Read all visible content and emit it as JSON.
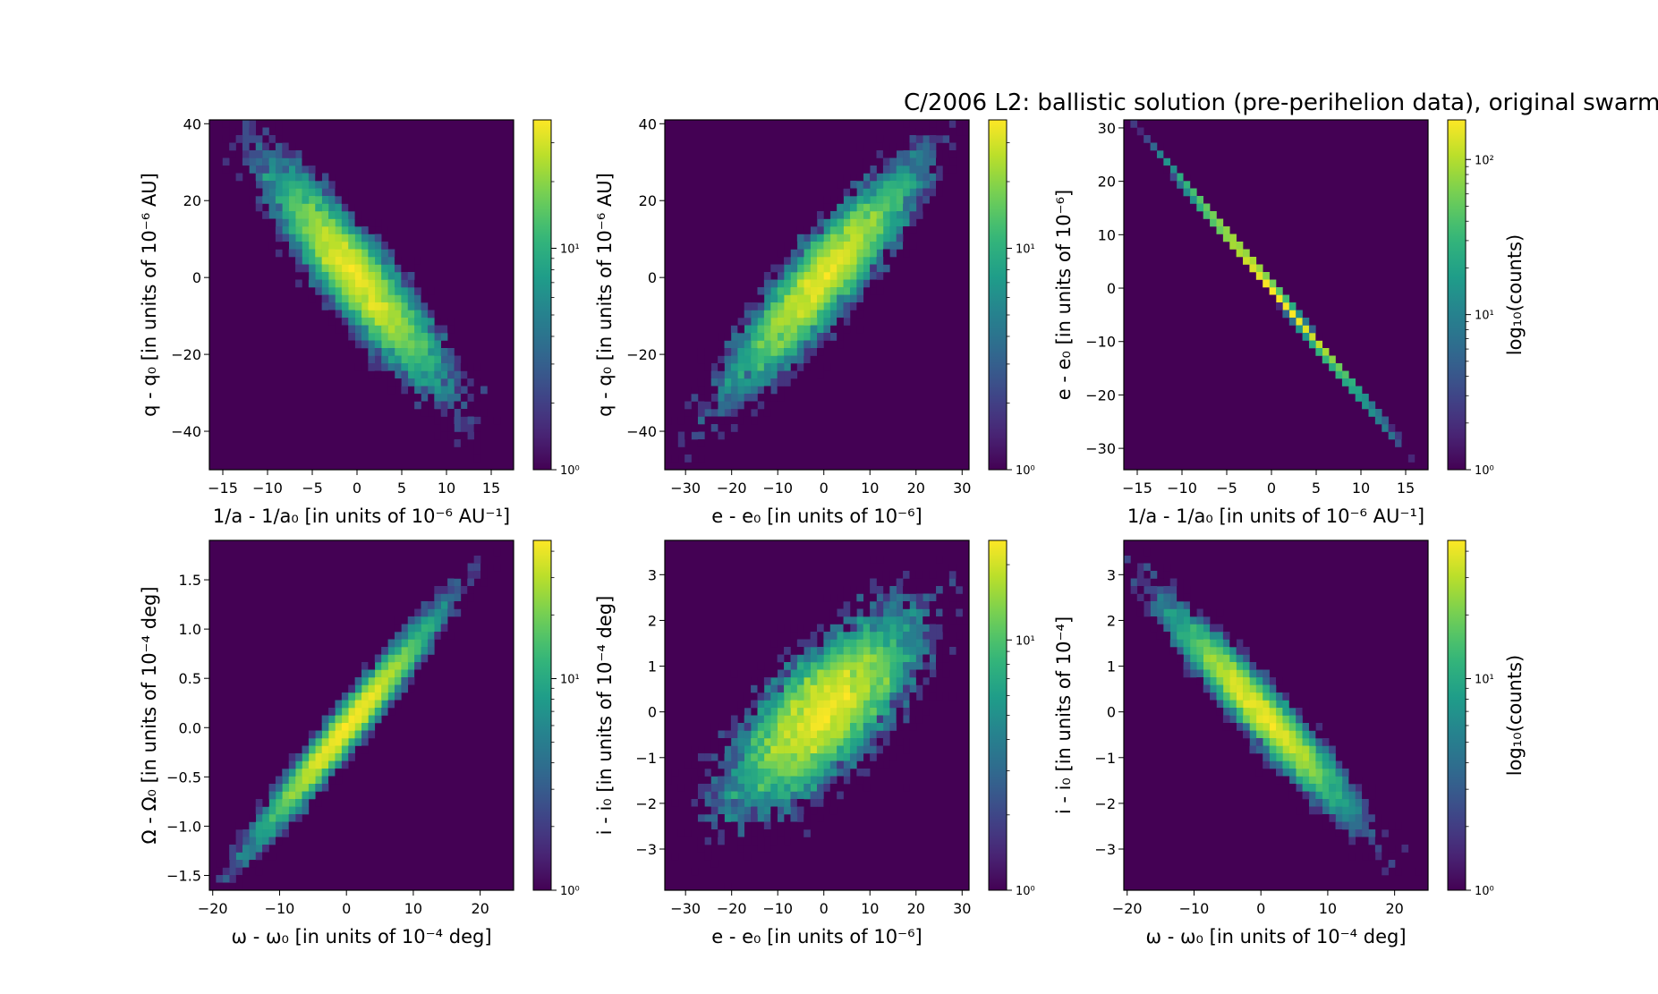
{
  "figure": {
    "title": "C/2006 L2:  ballistic solution (pre-perihelion data), original swarm",
    "colormap": [
      "#440154",
      "#482878",
      "#3e4989",
      "#31688e",
      "#26828e",
      "#1f9e89",
      "#35b779",
      "#6ece58",
      "#b5de2b",
      "#fde725"
    ],
    "background_color": "#440154"
  },
  "chart_data": [
    {
      "type": "heatmap",
      "xlabel": "1/a - 1/a₀ [in units of 10⁻⁶ AU⁻¹]",
      "ylabel": "q - q₀ [in units of 10⁻⁶ AU]",
      "xlim": [
        -16.5,
        17.5
      ],
      "ylim": [
        -50,
        41
      ],
      "xticks": [
        -15,
        -10,
        -5,
        0,
        5,
        10,
        15
      ],
      "xticklabels": [
        "−15",
        "−10",
        "−5",
        "0",
        "5",
        "10",
        "15"
      ],
      "yticks": [
        -40,
        -20,
        0,
        20,
        40
      ],
      "yticklabels": [
        "−40",
        "−20",
        "0",
        "20",
        "40"
      ],
      "distribution": {
        "mean": [
          0,
          0
        ],
        "sd": [
          4.6,
          13.5
        ],
        "corr": -0.9
      },
      "colorbar": {
        "scale": "log",
        "min": 1,
        "max": 38,
        "ticks": [
          1,
          10
        ],
        "ticklabels": [
          "10⁰",
          "10¹"
        ],
        "label": ""
      }
    },
    {
      "type": "heatmap",
      "xlabel": "e - e₀ [in units of 10⁻⁶]",
      "ylabel": "q - q₀ [in units of 10⁻⁶ AU]",
      "xlim": [
        -34.5,
        31.5
      ],
      "ylim": [
        -50,
        41
      ],
      "xticks": [
        -30,
        -20,
        -10,
        0,
        10,
        20,
        30
      ],
      "xticklabels": [
        "−30",
        "−20",
        "−10",
        "0",
        "10",
        "20",
        "30"
      ],
      "yticks": [
        -40,
        -20,
        0,
        20,
        40
      ],
      "yticklabels": [
        "−40",
        "−20",
        "0",
        "20",
        "40"
      ],
      "distribution": {
        "mean": [
          0,
          0
        ],
        "sd": [
          9.5,
          13.5
        ],
        "corr": 0.9
      },
      "colorbar": {
        "scale": "log",
        "min": 1,
        "max": 38,
        "ticks": [
          1,
          10
        ],
        "ticklabels": [
          "10⁰",
          "10¹"
        ],
        "label": ""
      }
    },
    {
      "type": "heatmap",
      "xlabel": "1/a - 1/a₀ [in units of 10⁻⁶ AU⁻¹]",
      "ylabel": "e - e₀ [in units of 10⁻⁶]",
      "xlim": [
        -16.5,
        17.5
      ],
      "ylim": [
        -34,
        31.5
      ],
      "xticks": [
        -15,
        -10,
        -5,
        0,
        5,
        10,
        15
      ],
      "xticklabels": [
        "−15",
        "−10",
        "−5",
        "0",
        "5",
        "10",
        "15"
      ],
      "yticks": [
        -30,
        -20,
        -10,
        0,
        10,
        20,
        30
      ],
      "yticklabels": [
        "−30",
        "−20",
        "−10",
        "0",
        "10",
        "20",
        "30"
      ],
      "distribution": {
        "mean": [
          0,
          0
        ],
        "sd": [
          4.6,
          9.3
        ],
        "corr": -0.9999
      },
      "colorbar": {
        "scale": "log",
        "min": 1,
        "max": 180,
        "ticks": [
          1,
          10,
          100
        ],
        "ticklabels": [
          "10⁰",
          "10¹",
          "10²"
        ],
        "label": "log₁₀(counts)"
      }
    },
    {
      "type": "heatmap",
      "xlabel": "ω - ω₀ [in units of 10⁻⁴ deg]",
      "ylabel": "Ω - Ω₀ [in units of 10⁻⁴ deg]",
      "xlim": [
        -20.5,
        25
      ],
      "ylim": [
        -1.65,
        1.9
      ],
      "xticks": [
        -20,
        -10,
        0,
        10,
        20
      ],
      "xticklabels": [
        "−20",
        "−10",
        "0",
        "10",
        "20"
      ],
      "yticks": [
        -1.5,
        -1.0,
        -0.5,
        0.0,
        0.5,
        1.0,
        1.5
      ],
      "yticklabels": [
        "−1.5",
        "−1.0",
        "−0.5",
        "0.0",
        "0.5",
        "1.0",
        "1.5"
      ],
      "distribution": {
        "mean": [
          0,
          0
        ],
        "sd": [
          6.2,
          0.52
        ],
        "corr": 0.975
      },
      "colorbar": {
        "scale": "log",
        "min": 1,
        "max": 45,
        "ticks": [
          1,
          10
        ],
        "ticklabels": [
          "10⁰",
          "10¹"
        ],
        "label": ""
      }
    },
    {
      "type": "heatmap",
      "xlabel": "e - e₀ [in units of 10⁻⁶]",
      "ylabel": "i - i₀ [in units of 10⁻⁴ deg]",
      "xlim": [
        -34.5,
        31.5
      ],
      "ylim": [
        -3.9,
        3.75
      ],
      "xticks": [
        -30,
        -20,
        -10,
        0,
        10,
        20,
        30
      ],
      "xticklabels": [
        "−30",
        "−20",
        "−10",
        "0",
        "10",
        "20",
        "30"
      ],
      "yticks": [
        -3,
        -2,
        -1,
        0,
        1,
        2,
        3
      ],
      "yticklabels": [
        "−3",
        "−2",
        "−1",
        "0",
        "1",
        "2",
        "3"
      ],
      "distribution": {
        "mean": [
          0,
          0
        ],
        "sd": [
          9.5,
          1.0
        ],
        "corr": 0.72
      },
      "colorbar": {
        "scale": "log",
        "min": 1,
        "max": 25,
        "ticks": [
          1,
          10
        ],
        "ticklabels": [
          "10⁰",
          "10¹"
        ],
        "label": ""
      }
    },
    {
      "type": "heatmap",
      "xlabel": "ω - ω₀ [in units of 10⁻⁴ deg]",
      "ylabel": "i - i₀ [in units of 10⁻⁴]",
      "xlim": [
        -20.5,
        25
      ],
      "ylim": [
        -3.9,
        3.75
      ],
      "xticks": [
        -20,
        -10,
        0,
        10,
        20
      ],
      "xticklabels": [
        "−20",
        "−10",
        "0",
        "10",
        "20"
      ],
      "yticks": [
        -3,
        -2,
        -1,
        0,
        1,
        2,
        3
      ],
      "yticklabels": [
        "−3",
        "−2",
        "−1",
        "0",
        "1",
        "2",
        "3"
      ],
      "distribution": {
        "mean": [
          0,
          0
        ],
        "sd": [
          6.2,
          1.0
        ],
        "corr": -0.95
      },
      "colorbar": {
        "scale": "log",
        "min": 1,
        "max": 45,
        "ticks": [
          1,
          10
        ],
        "ticklabels": [
          "10⁰",
          "10¹"
        ],
        "label": "log₁₀(counts)"
      }
    }
  ]
}
